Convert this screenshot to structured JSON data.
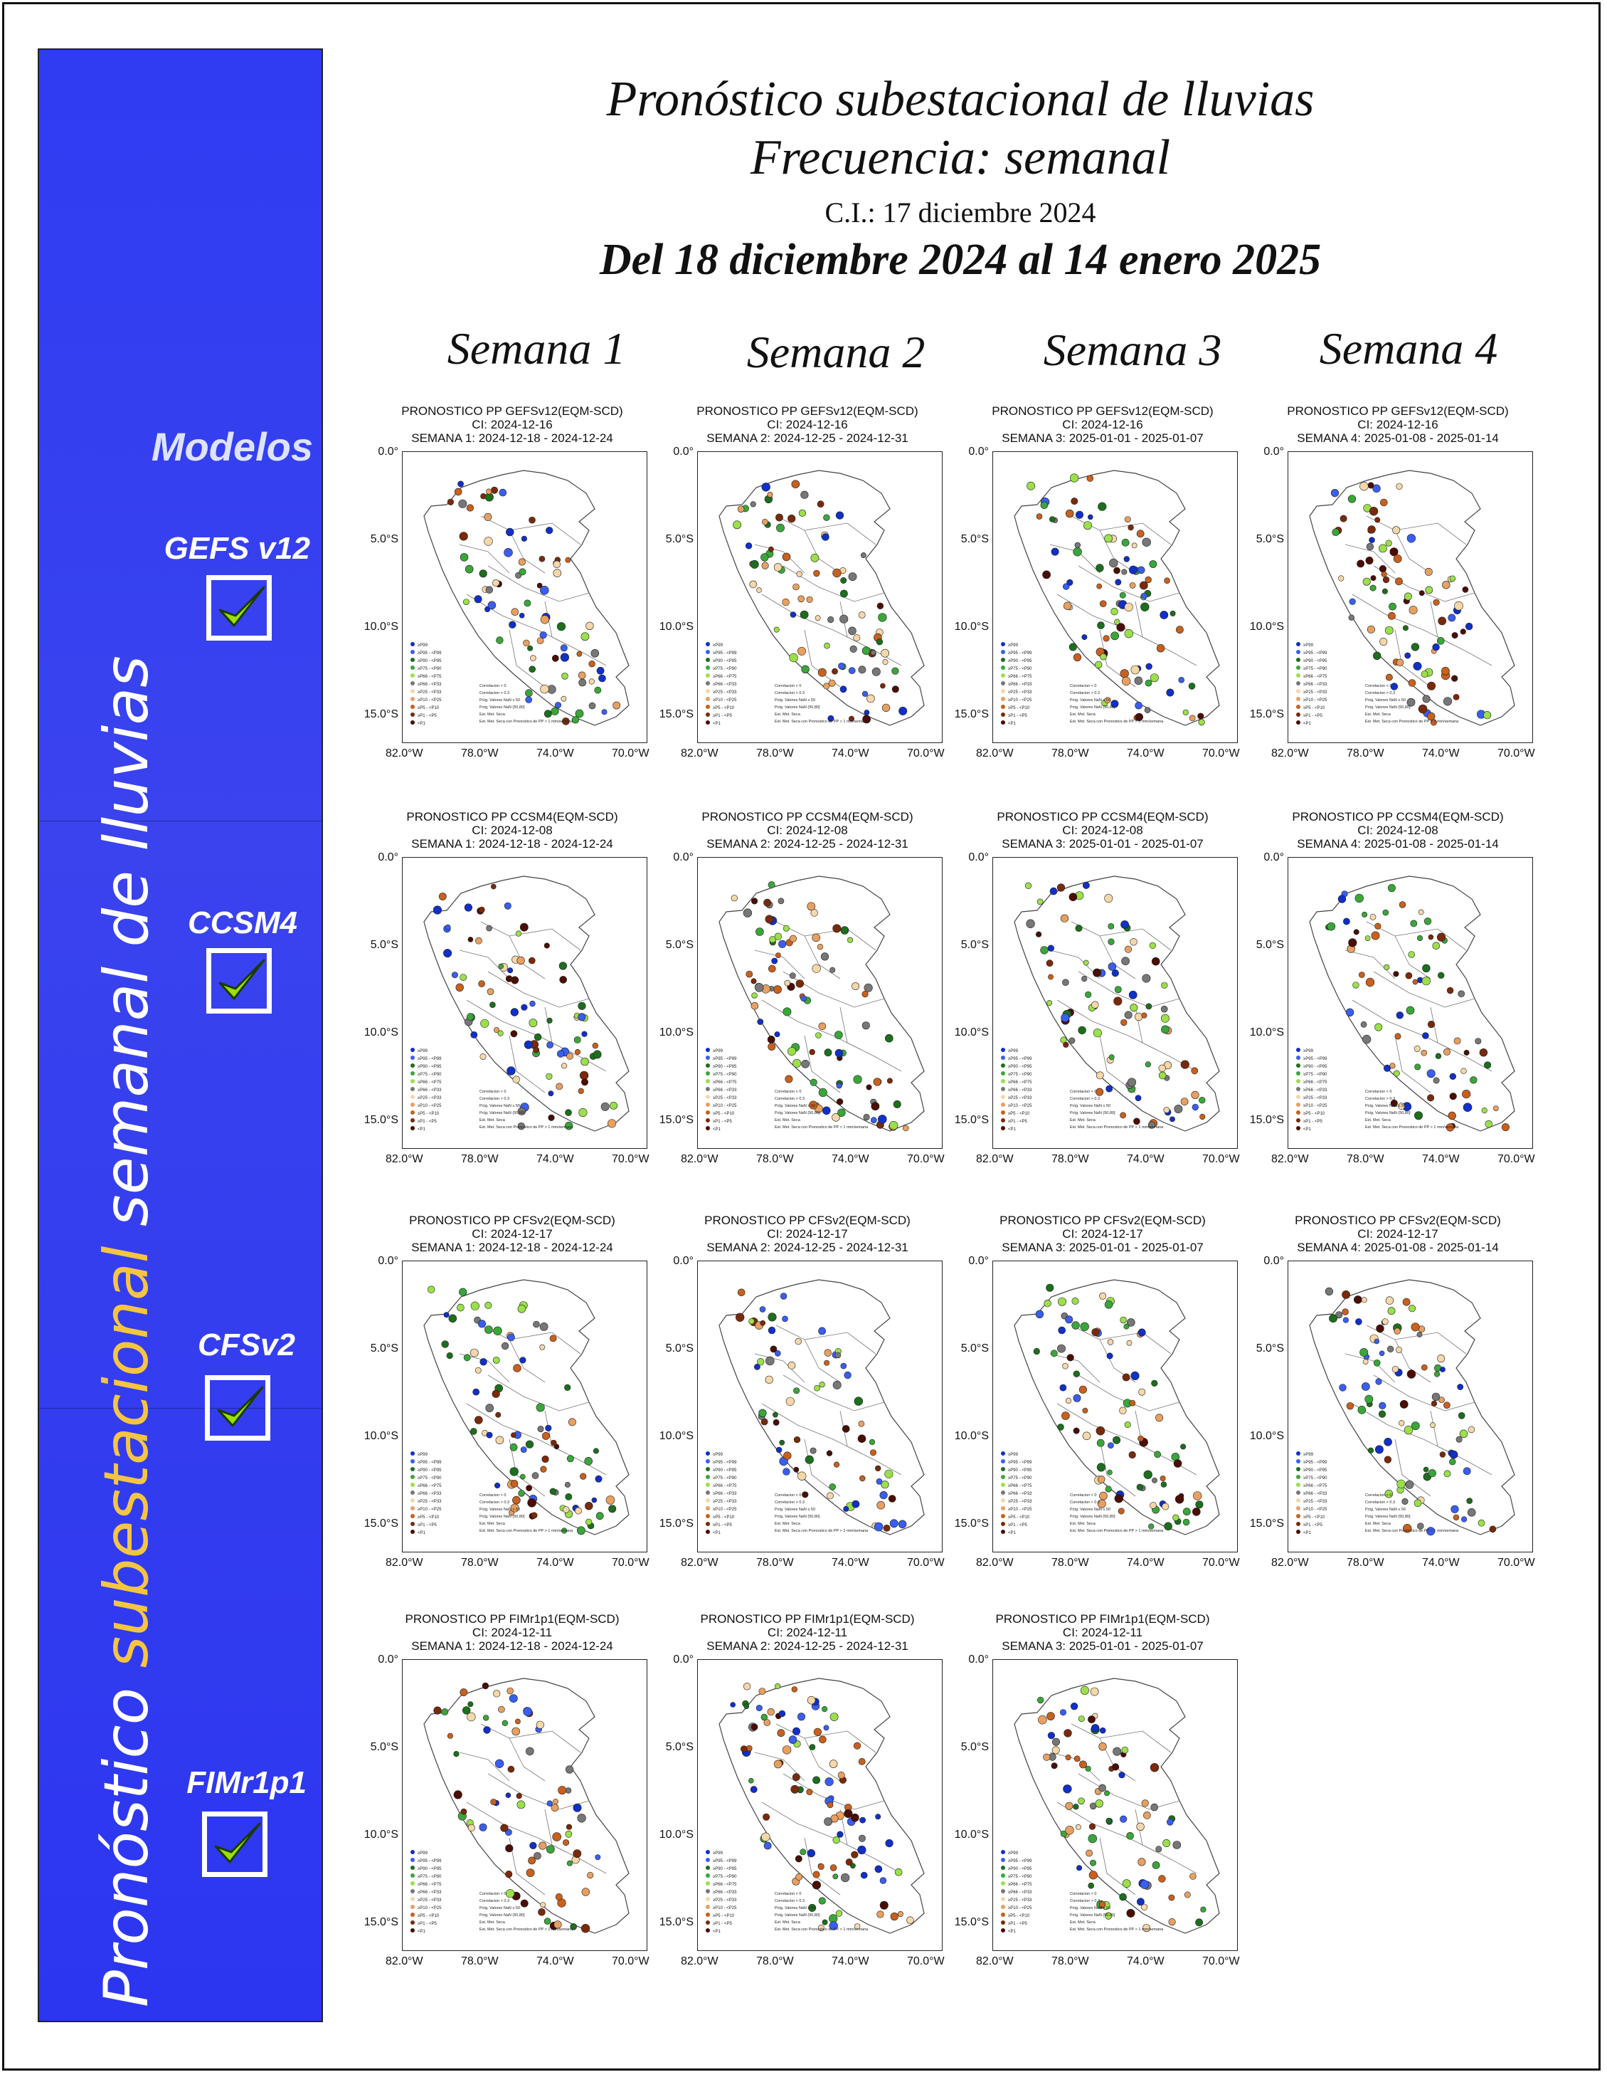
{
  "header": {
    "title": "Pronóstico subestacional de lluvias",
    "frequency": "Frecuencia: semanal",
    "ci": "C.I.: 17 diciembre 2024",
    "range": "Del 18 diciembre 2024 al 14 enero 2025"
  },
  "sidebar": {
    "title_part1": "Pronóstico ",
    "title_highlight": "subestacional",
    "title_part2": " semanal de lluvias",
    "models_label": "Modelos",
    "models": [
      {
        "name": "GEFS v12",
        "checked": true
      },
      {
        "name": "CCSM4",
        "checked": true
      },
      {
        "name": "CFSv2",
        "checked": true
      },
      {
        "name": "FIMr1p1",
        "checked": true
      }
    ]
  },
  "weeks": [
    "Semana 1",
    "Semana 2",
    "Semana 3",
    "Semana 4"
  ],
  "axis": {
    "yticks": [
      "0.0°",
      "5.0°S",
      "10.0°S",
      "15.0°S"
    ],
    "xticks": [
      "82.0°W",
      "78.0°W",
      "74.0°W",
      "70.0°W"
    ]
  },
  "panels": [
    {
      "t1": "PRONOSTICO PP GEFSv12(EQM-SCD)",
      "t2": "CI: 2024-12-16",
      "t3": "SEMANA 1: 2024-12-18 - 2024-12-24"
    },
    {
      "t1": "PRONOSTICO PP GEFSv12(EQM-SCD)",
      "t2": "CI: 2024-12-16",
      "t3": "SEMANA 2: 2024-12-25 - 2024-12-31"
    },
    {
      "t1": "PRONOSTICO PP GEFSv12(EQM-SCD)",
      "t2": "CI: 2024-12-16",
      "t3": "SEMANA 3: 2025-01-01 - 2025-01-07"
    },
    {
      "t1": "PRONOSTICO PP GEFSv12(EQM-SCD)",
      "t2": "CI: 2024-12-16",
      "t3": "SEMANA 4: 2025-01-08 - 2025-01-14"
    },
    {
      "t1": "PRONOSTICO PP CCSM4(EQM-SCD)",
      "t2": "CI: 2024-12-08",
      "t3": "SEMANA 1: 2024-12-18 - 2024-12-24"
    },
    {
      "t1": "PRONOSTICO PP CCSM4(EQM-SCD)",
      "t2": "CI: 2024-12-08",
      "t3": "SEMANA 2: 2024-12-25 - 2024-12-31"
    },
    {
      "t1": "PRONOSTICO PP CCSM4(EQM-SCD)",
      "t2": "CI: 2024-12-08",
      "t3": "SEMANA 3: 2025-01-01 - 2025-01-07"
    },
    {
      "t1": "PRONOSTICO PP CCSM4(EQM-SCD)",
      "t2": "CI: 2024-12-08",
      "t3": "SEMANA 4: 2025-01-08 - 2025-01-14"
    },
    {
      "t1": "PRONOSTICO PP CFSv2(EQM-SCD)",
      "t2": "CI: 2024-12-17",
      "t3": "SEMANA 1: 2024-12-18 - 2024-12-24"
    },
    {
      "t1": "PRONOSTICO PP CFSv2(EQM-SCD)",
      "t2": "CI: 2024-12-17",
      "t3": "SEMANA 2: 2024-12-25 - 2024-12-31"
    },
    {
      "t1": "PRONOSTICO PP CFSv2(EQM-SCD)",
      "t2": "CI: 2024-12-17",
      "t3": "SEMANA 3: 2025-01-01 - 2025-01-07"
    },
    {
      "t1": "PRONOSTICO PP CFSv2(EQM-SCD)",
      "t2": "CI: 2024-12-17",
      "t3": "SEMANA 4: 2025-01-08 - 2025-01-14"
    },
    {
      "t1": "PRONOSTICO PP FIMr1p1(EQM-SCD)",
      "t2": "CI: 2024-12-11",
      "t3": "SEMANA 1: 2024-12-18 - 2024-12-24"
    },
    {
      "t1": "PRONOSTICO PP FIMr1p1(EQM-SCD)",
      "t2": "CI: 2024-12-11",
      "t3": "SEMANA 2: 2024-12-25 - 2024-12-31"
    },
    {
      "t1": "PRONOSTICO PP FIMr1p1(EQM-SCD)",
      "t2": "CI: 2024-12-11",
      "t3": "SEMANA 3: 2025-01-01 - 2025-01-07"
    }
  ],
  "legend": {
    "categories": [
      "≥P99",
      "≥P95 - <P99",
      "≥P90 - <P95",
      "≥P75 - <P90",
      "≥P66 - <P75",
      "≥P66 - <P33",
      "≥P25 - <P33",
      "≥P10 - <P25",
      "≥P5 - <P10",
      "≥P1 - <P5",
      "<P1"
    ],
    "category_colors": [
      "#1030c8",
      "#3a5ef0",
      "#1d6e1d",
      "#3aa63a",
      "#9be04a",
      "#777777",
      "#f6d7a8",
      "#e8a060",
      "#c8601e",
      "#7a2a0a",
      "#4a0e04"
    ],
    "markers": [
      "Correlacion < 0",
      "Correlacion > 0.3",
      "Pctg. Valores NaN ≤ 50",
      "Pctg. Valores NaN (50,80]",
      "Est. Met. Seca",
      "Est. Met. Seca con Pronostico de PP > 1 mm/semana"
    ]
  },
  "colors": {
    "sidebar": "#3040f0",
    "highlight": "#f5c542",
    "check": "#9be000"
  }
}
